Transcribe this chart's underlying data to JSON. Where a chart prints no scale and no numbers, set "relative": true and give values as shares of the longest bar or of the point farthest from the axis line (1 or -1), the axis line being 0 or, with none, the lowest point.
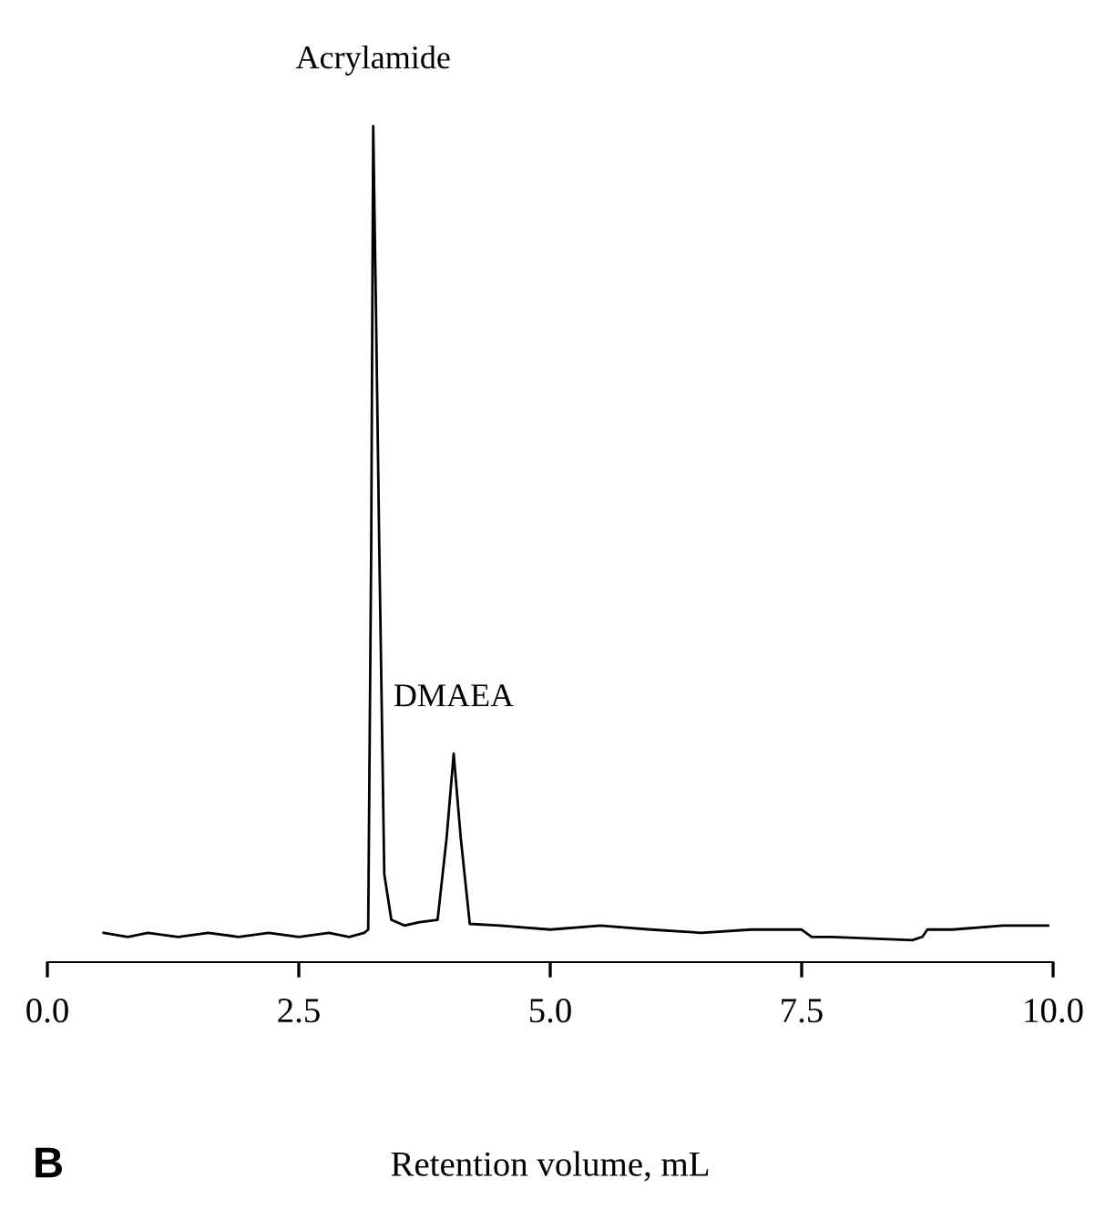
{
  "chart_data": {
    "type": "line",
    "relative": true,
    "xlabel": "Retention volume, mL",
    "xlim": [
      0,
      10
    ],
    "xticks": [
      {
        "value": 0,
        "label": "0.0"
      },
      {
        "value": 2.5,
        "label": "2.5"
      },
      {
        "value": 5,
        "label": "5.0"
      },
      {
        "value": 7.5,
        "label": "7.5"
      },
      {
        "value": 10,
        "label": "10.0"
      }
    ],
    "annotations": [
      {
        "text": "Acrylamide",
        "x": 3.24,
        "y": 1.0
      },
      {
        "text": "DMAEA",
        "x": 4.04,
        "y": 0.229
      },
      "B"
    ],
    "grid": false,
    "legend": false,
    "marker": "none",
    "line_style": "solid",
    "series": [
      {
        "color": "#000000",
        "x": [
          0.56,
          0.8,
          1.0,
          1.3,
          1.6,
          1.9,
          2.2,
          2.5,
          2.8,
          3.0,
          3.15,
          3.19,
          3.22,
          3.24,
          3.27,
          3.3,
          3.35,
          3.42,
          3.55,
          3.7,
          3.88,
          3.97,
          4.04,
          4.11,
          4.2,
          4.5,
          5.0,
          5.5,
          6.0,
          6.5,
          7.0,
          7.5,
          7.6,
          7.8,
          8.2,
          8.6,
          8.7,
          8.75,
          9.0,
          9.5,
          9.95
        ],
        "values": [
          0.009,
          0.004,
          0.009,
          0.004,
          0.009,
          0.004,
          0.009,
          0.004,
          0.009,
          0.004,
          0.009,
          0.013,
          0.484,
          1.0,
          0.75,
          0.484,
          0.081,
          0.025,
          0.018,
          0.022,
          0.025,
          0.126,
          0.229,
          0.126,
          0.02,
          0.018,
          0.013,
          0.018,
          0.013,
          0.009,
          0.013,
          0.013,
          0.004,
          0.004,
          0.002,
          0.0,
          0.004,
          0.013,
          0.013,
          0.018,
          0.018
        ]
      }
    ]
  }
}
